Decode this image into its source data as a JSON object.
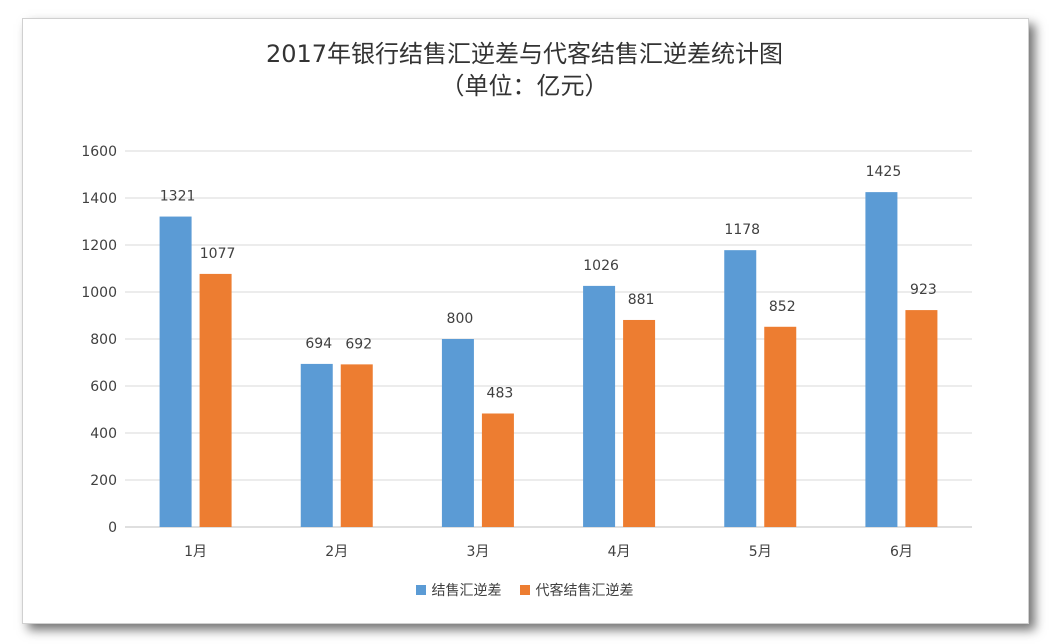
{
  "chart_data": {
    "type": "bar",
    "title": "2017年银行结售汇逆差与代客结售汇逆差统计图",
    "subtitle": "（单位：亿元）",
    "categories": [
      "1月",
      "2月",
      "3月",
      "4月",
      "5月",
      "6月"
    ],
    "series": [
      {
        "name": "结售汇逆差",
        "color": "#5b9bd5",
        "values": [
          1321,
          694,
          800,
          1026,
          1178,
          1425
        ]
      },
      {
        "name": "代客结售汇逆差",
        "color": "#ed7d31",
        "values": [
          1077,
          692,
          483,
          881,
          852,
          923
        ]
      }
    ],
    "ylim": [
      0,
      1600
    ],
    "yticks": [
      0,
      200,
      400,
      600,
      800,
      1000,
      1200,
      1400,
      1600
    ],
    "grid": true,
    "legend": "bottom-center"
  }
}
